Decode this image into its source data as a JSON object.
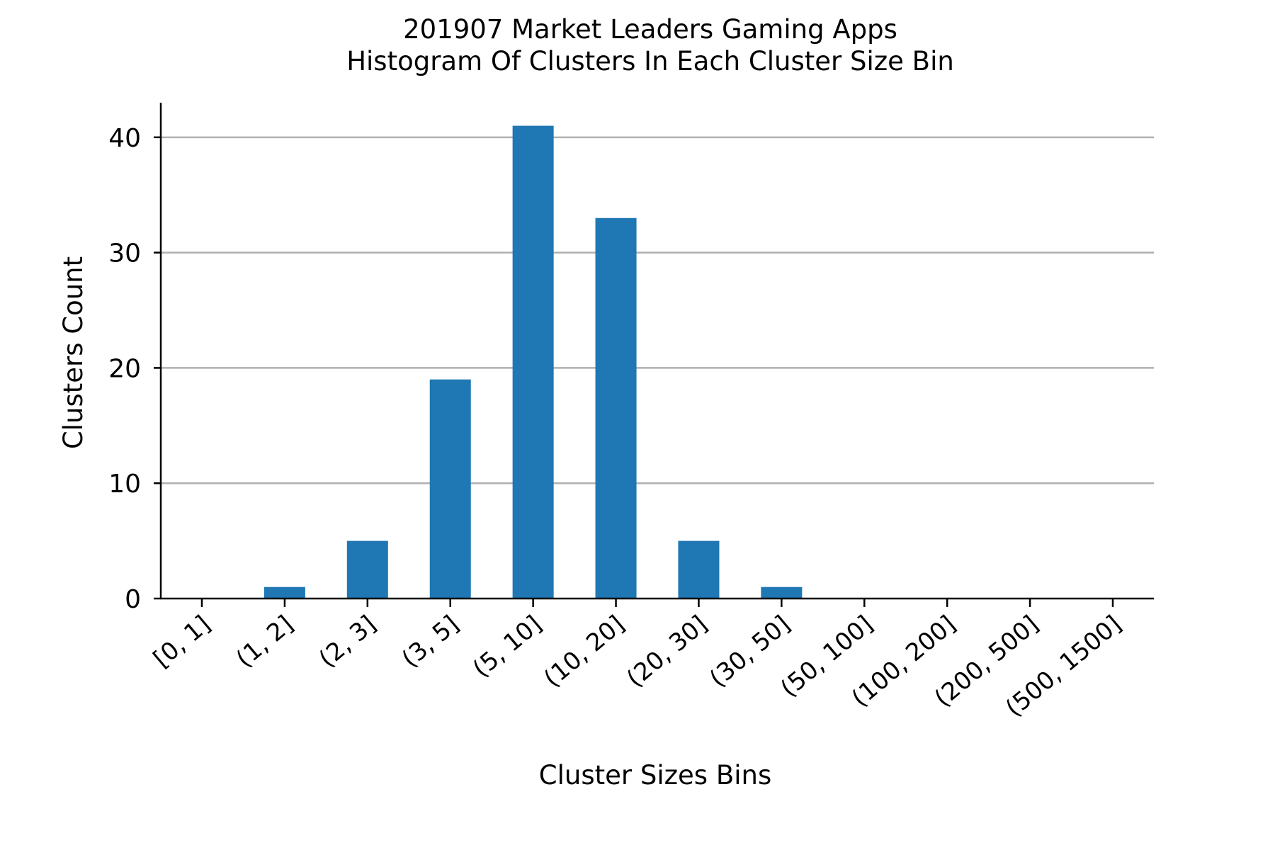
{
  "chart_data": {
    "type": "bar",
    "title": "201907 Market Leaders Gaming Apps",
    "subtitle": "Histogram Of Clusters In Each Cluster Size Bin",
    "xlabel": "Cluster Sizes Bins",
    "ylabel": "Clusters Count",
    "categories": [
      "[0, 1]",
      "(1, 2]",
      "(2, 3]",
      "(3, 5]",
      "(5, 10]",
      "(10, 20]",
      "(20, 30]",
      "(30, 50]",
      "(50, 100]",
      "(100, 200]",
      "(200, 500]",
      "(500, 1500]"
    ],
    "values": [
      0,
      1,
      5,
      19,
      41,
      33,
      5,
      1,
      0,
      0,
      0,
      0
    ],
    "yticks": [
      "0",
      "10",
      "20",
      "30",
      "40"
    ],
    "ylim": [
      0,
      43
    ],
    "grid": "horizontal",
    "bar_color": "#1f77b4",
    "grid_color": "#b0b0b0",
    "axis_color": "#000000"
  }
}
